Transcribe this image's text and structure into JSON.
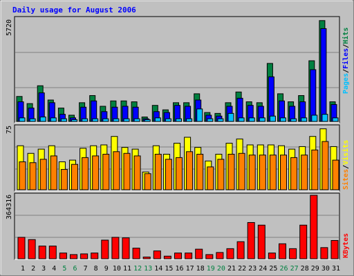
{
  "title": "Daily usage for August 2006",
  "colors": {
    "background": "#c0c0c0",
    "title": "#0000ff",
    "hits": "#008040",
    "files": "#0000ff",
    "pages": "#00c0ff",
    "visits": "#ffff00",
    "sites": "#ff8000",
    "kbytes": "#ff0000",
    "weekday_label": "#000000",
    "weekend_label": "#008040"
  },
  "chart_data": [
    {
      "type": "bar",
      "panel": "hits-files-pages",
      "max_label": "5720",
      "ylim": [
        0,
        5720
      ],
      "legend": [
        "Pages",
        "Files",
        "Hits"
      ],
      "categories": [
        "1",
        "2",
        "3",
        "4",
        "5",
        "6",
        "7",
        "8",
        "9",
        "10",
        "11",
        "12",
        "13",
        "14",
        "15",
        "16",
        "17",
        "18",
        "19",
        "20",
        "21",
        "22",
        "23",
        "24",
        "25",
        "26",
        "27",
        "28",
        "29",
        "30",
        "31"
      ],
      "series": [
        {
          "name": "Hits",
          "values": [
            1400,
            1000,
            2000,
            1200,
            750,
            350,
            1050,
            1450,
            850,
            1150,
            1150,
            1100,
            250,
            900,
            650,
            1050,
            1050,
            1550,
            500,
            450,
            1050,
            1650,
            1100,
            1050,
            3250,
            1550,
            1100,
            1450,
            3400,
            5650,
            1100
          ]
        },
        {
          "name": "Files",
          "values": [
            1100,
            750,
            1600,
            1050,
            400,
            200,
            800,
            1150,
            550,
            800,
            850,
            800,
            150,
            550,
            500,
            900,
            850,
            1200,
            350,
            300,
            850,
            1300,
            900,
            850,
            2500,
            1150,
            850,
            1100,
            2900,
            5200,
            950
          ]
        },
        {
          "name": "Pages",
          "values": [
            200,
            150,
            250,
            200,
            150,
            100,
            150,
            150,
            150,
            150,
            150,
            150,
            100,
            200,
            150,
            150,
            150,
            700,
            150,
            150,
            450,
            200,
            200,
            200,
            300,
            200,
            150,
            200,
            350,
            400,
            200
          ]
        }
      ]
    },
    {
      "type": "bar",
      "panel": "visits-sites",
      "max_label": "75",
      "ylim": [
        0,
        75
      ],
      "legend": [
        "Sites",
        "Visits"
      ],
      "categories": [
        "1",
        "2",
        "3",
        "4",
        "5",
        "6",
        "7",
        "8",
        "9",
        "10",
        "11",
        "12",
        "13",
        "14",
        "15",
        "16",
        "17",
        "18",
        "19",
        "20",
        "21",
        "22",
        "23",
        "24",
        "25",
        "26",
        "27",
        "28",
        "29",
        "30",
        "31"
      ],
      "series": [
        {
          "name": "Visits",
          "values": [
            52,
            43,
            48,
            52,
            33,
            35,
            49,
            52,
            53,
            63,
            50,
            48,
            21,
            52,
            42,
            55,
            62,
            50,
            34,
            42,
            55,
            60,
            53,
            53,
            53,
            52,
            48,
            51,
            63,
            72,
            51
          ]
        },
        {
          "name": "Sites",
          "values": [
            33,
            32,
            36,
            40,
            24,
            30,
            38,
            40,
            42,
            45,
            43,
            40,
            19,
            42,
            36,
            38,
            45,
            42,
            27,
            36,
            42,
            43,
            41,
            41,
            41,
            41,
            38,
            41,
            47,
            57,
            35
          ]
        }
      ]
    },
    {
      "type": "bar",
      "panel": "kbytes",
      "max_label": "364316",
      "ylim": [
        0,
        364316
      ],
      "legend": [
        "KBytes"
      ],
      "categories": [
        "1",
        "2",
        "3",
        "4",
        "5",
        "6",
        "7",
        "8",
        "9",
        "10",
        "11",
        "12",
        "13",
        "14",
        "15",
        "16",
        "17",
        "18",
        "19",
        "20",
        "21",
        "22",
        "23",
        "24",
        "25",
        "26",
        "27",
        "28",
        "29",
        "30",
        "31"
      ],
      "series": [
        {
          "name": "KBytes",
          "values": [
            123000,
            110000,
            73000,
            73000,
            33000,
            24000,
            28000,
            33000,
            107000,
            123000,
            120000,
            61000,
            10000,
            45000,
            15000,
            33000,
            33000,
            55000,
            24000,
            36000,
            58000,
            98000,
            208000,
            193000,
            33000,
            86000,
            58000,
            193000,
            364316,
            64000,
            105000
          ]
        }
      ]
    }
  ],
  "x_labels": [
    {
      "text": "1",
      "weekend": false
    },
    {
      "text": "2",
      "weekend": false
    },
    {
      "text": "3",
      "weekend": false
    },
    {
      "text": "4",
      "weekend": false
    },
    {
      "text": "5",
      "weekend": true
    },
    {
      "text": "6",
      "weekend": true
    },
    {
      "text": "7",
      "weekend": false
    },
    {
      "text": "8",
      "weekend": false
    },
    {
      "text": "9",
      "weekend": false
    },
    {
      "text": "10",
      "weekend": false
    },
    {
      "text": "11",
      "weekend": false
    },
    {
      "text": "12",
      "weekend": true
    },
    {
      "text": "13",
      "weekend": true
    },
    {
      "text": "14",
      "weekend": false
    },
    {
      "text": "15",
      "weekend": false
    },
    {
      "text": "16",
      "weekend": false
    },
    {
      "text": "17",
      "weekend": false
    },
    {
      "text": "18",
      "weekend": false
    },
    {
      "text": "19",
      "weekend": true
    },
    {
      "text": "20",
      "weekend": true
    },
    {
      "text": "21",
      "weekend": false
    },
    {
      "text": "22",
      "weekend": false
    },
    {
      "text": "23",
      "weekend": false
    },
    {
      "text": "24",
      "weekend": false
    },
    {
      "text": "25",
      "weekend": false
    },
    {
      "text": "26",
      "weekend": true
    },
    {
      "text": "27",
      "weekend": true
    },
    {
      "text": "28",
      "weekend": false
    },
    {
      "text": "29",
      "weekend": false
    },
    {
      "text": "30",
      "weekend": false
    },
    {
      "text": "31",
      "weekend": false
    }
  ]
}
